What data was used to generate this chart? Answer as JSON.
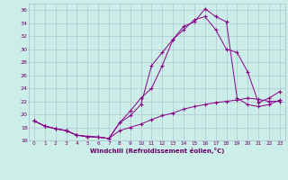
{
  "xlabel": "Windchill (Refroidissement éolien,°C)",
  "ylabel": "",
  "bg_color": "#cceee8",
  "grid_color": "#aabbcc",
  "line_color": "#880088",
  "xlim": [
    -0.5,
    23.5
  ],
  "ylim": [
    16,
    37
  ],
  "yticks": [
    16,
    18,
    20,
    22,
    24,
    26,
    28,
    30,
    32,
    34,
    36
  ],
  "xticks": [
    0,
    1,
    2,
    3,
    4,
    5,
    6,
    7,
    8,
    9,
    10,
    11,
    12,
    13,
    14,
    15,
    16,
    17,
    18,
    19,
    20,
    21,
    22,
    23
  ],
  "line1_x": [
    0,
    1,
    2,
    3,
    4,
    5,
    6,
    7,
    8,
    9,
    10,
    11,
    12,
    13,
    14,
    15,
    16,
    17,
    18,
    19,
    20,
    21,
    22,
    23
  ],
  "line1_y": [
    19.0,
    18.2,
    17.8,
    17.5,
    16.8,
    16.6,
    16.5,
    16.3,
    18.7,
    19.8,
    21.5,
    27.5,
    29.5,
    31.5,
    33.5,
    34.2,
    36.2,
    35.0,
    34.2,
    22.5,
    21.5,
    21.2,
    21.5,
    22.2
  ],
  "line2_x": [
    0,
    1,
    2,
    3,
    4,
    5,
    6,
    7,
    8,
    9,
    10,
    11,
    12,
    13,
    14,
    15,
    16,
    17,
    18,
    19,
    20,
    21,
    22,
    23
  ],
  "line2_y": [
    19.0,
    18.2,
    17.8,
    17.5,
    16.8,
    16.6,
    16.5,
    16.3,
    18.7,
    20.5,
    22.5,
    24.0,
    27.5,
    31.5,
    33.0,
    34.5,
    35.0,
    33.0,
    30.0,
    29.5,
    26.5,
    21.8,
    22.5,
    23.5
  ],
  "line3_x": [
    0,
    1,
    2,
    3,
    4,
    5,
    6,
    7,
    8,
    9,
    10,
    11,
    12,
    13,
    14,
    15,
    16,
    17,
    18,
    19,
    20,
    21,
    22,
    23
  ],
  "line3_y": [
    19.0,
    18.2,
    17.8,
    17.5,
    16.8,
    16.6,
    16.5,
    16.3,
    17.5,
    18.0,
    18.5,
    19.2,
    19.8,
    20.2,
    20.8,
    21.2,
    21.5,
    21.8,
    22.0,
    22.2,
    22.5,
    22.3,
    22.0,
    22.0
  ]
}
